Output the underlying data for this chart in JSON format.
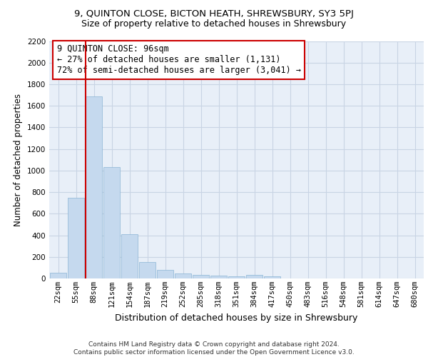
{
  "title1": "9, QUINTON CLOSE, BICTON HEATH, SHREWSBURY, SY3 5PJ",
  "title2": "Size of property relative to detached houses in Shrewsbury",
  "xlabel": "Distribution of detached houses by size in Shrewsbury",
  "ylabel": "Number of detached properties",
  "categories": [
    "22sqm",
    "55sqm",
    "88sqm",
    "121sqm",
    "154sqm",
    "187sqm",
    "219sqm",
    "252sqm",
    "285sqm",
    "318sqm",
    "351sqm",
    "384sqm",
    "417sqm",
    "450sqm",
    "483sqm",
    "516sqm",
    "548sqm",
    "581sqm",
    "614sqm",
    "647sqm",
    "680sqm"
  ],
  "values": [
    50,
    745,
    1685,
    1030,
    410,
    150,
    80,
    45,
    35,
    25,
    20,
    30,
    20,
    0,
    0,
    0,
    0,
    0,
    0,
    0,
    0
  ],
  "bar_color": "#c5d9ee",
  "bar_edge_color": "#8ab4d4",
  "grid_color": "#c8d4e4",
  "background_color": "#e8eff8",
  "red_line_x": 2,
  "red_line_color": "#cc0000",
  "annotation_line1": "9 QUINTON CLOSE: 96sqm",
  "annotation_line2": "← 27% of detached houses are smaller (1,131)",
  "annotation_line3": "72% of semi-detached houses are larger (3,041) →",
  "annotation_box_color": "#ffffff",
  "annotation_box_edge_color": "#cc0000",
  "ylim": [
    0,
    2200
  ],
  "yticks": [
    0,
    200,
    400,
    600,
    800,
    1000,
    1200,
    1400,
    1600,
    1800,
    2000,
    2200
  ],
  "footer": "Contains HM Land Registry data © Crown copyright and database right 2024.\nContains public sector information licensed under the Open Government Licence v3.0.",
  "title1_fontsize": 9.5,
  "title2_fontsize": 9,
  "annotation_fontsize": 8.5,
  "tick_fontsize": 7.5,
  "ylabel_fontsize": 8.5,
  "xlabel_fontsize": 9,
  "footer_fontsize": 6.5
}
